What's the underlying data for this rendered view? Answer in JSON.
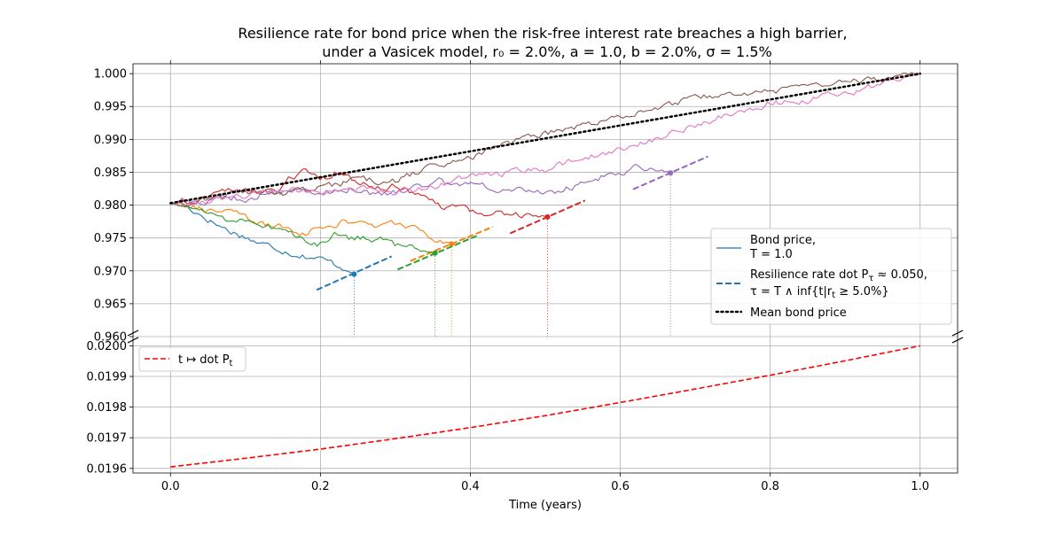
{
  "chart_data": {
    "type": "line",
    "title": "Resilience rate for bond price when the risk-free interest rate breaches a high barrier,",
    "subtitle": "under a Vasicek model, r₀ = 2.0%, a = 1.0, b = 2.0%, σ = 1.5%",
    "xlabel": "Time (years)",
    "xlim": [
      -0.05,
      1.05
    ],
    "x_ticks": [
      "0.0",
      "0.2",
      "0.4",
      "0.6",
      "0.8",
      "1.0"
    ],
    "top_panel": {
      "ylim": [
        0.96,
        1.0015
      ],
      "y_ticks": [
        "0.960",
        "0.965",
        "0.970",
        "0.975",
        "0.980",
        "0.985",
        "0.990",
        "0.995",
        "1.000"
      ],
      "legend": {
        "position": "lower-right",
        "entries": [
          {
            "label_line1": "Bond price,",
            "label_line2": "T = 1.0"
          },
          {
            "label_line1": "Resilience rate dot P",
            "label_sub": "τ",
            "label_tail": " ≈ 0.050,",
            "label_line2": "τ = T ∧ inf{t|r",
            "label_line2_sub": "t",
            "label_line2_tail": " ≥ 5.0%}"
          },
          {
            "label_line1": "Mean bond price"
          }
        ]
      },
      "mean_bond_price": {
        "x": [
          0.0,
          1.0
        ],
        "y": [
          0.9803,
          1.0
        ]
      },
      "series": [
        {
          "name": "path-blue",
          "color": "#1f77b4",
          "knots": [
            [
              0.0,
              0.9802
            ],
            [
              0.02,
              0.9798
            ],
            [
              0.04,
              0.9786
            ],
            [
              0.06,
              0.9772
            ],
            [
              0.08,
              0.976
            ],
            [
              0.1,
              0.9752
            ],
            [
              0.12,
              0.9741
            ],
            [
              0.14,
              0.9736
            ],
            [
              0.16,
              0.9728
            ],
            [
              0.18,
              0.9723
            ],
            [
              0.2,
              0.9718
            ],
            [
              0.22,
              0.971
            ],
            [
              0.24,
              0.97
            ],
            [
              0.245,
              0.9695
            ]
          ],
          "stop": {
            "t": 0.245,
            "p": 0.9695
          },
          "tangent": {
            "x0": 0.195,
            "y0": 0.9671,
            "x1": 0.295,
            "y1": 0.9722
          }
        },
        {
          "name": "path-orange",
          "color": "#ff7f0e",
          "knots": [
            [
              0.0,
              0.9802
            ],
            [
              0.02,
              0.9805
            ],
            [
              0.04,
              0.9795
            ],
            [
              0.06,
              0.979
            ],
            [
              0.08,
              0.9788
            ],
            [
              0.1,
              0.9783
            ],
            [
              0.12,
              0.977
            ],
            [
              0.14,
              0.9768
            ],
            [
              0.16,
              0.9762
            ],
            [
              0.18,
              0.9756
            ],
            [
              0.2,
              0.9768
            ],
            [
              0.22,
              0.9772
            ],
            [
              0.24,
              0.9775
            ],
            [
              0.26,
              0.977
            ],
            [
              0.28,
              0.9768
            ],
            [
              0.3,
              0.9772
            ],
            [
              0.32,
              0.977
            ],
            [
              0.34,
              0.9752
            ],
            [
              0.36,
              0.9745
            ],
            [
              0.375,
              0.9741
            ]
          ],
          "stop": {
            "t": 0.375,
            "p": 0.9741
          },
          "tangent": {
            "x0": 0.32,
            "y0": 0.9715,
            "x1": 0.43,
            "y1": 0.9767
          }
        },
        {
          "name": "path-green",
          "color": "#2ca02c",
          "knots": [
            [
              0.0,
              0.9802
            ],
            [
              0.02,
              0.98
            ],
            [
              0.04,
              0.9793
            ],
            [
              0.06,
              0.9785
            ],
            [
              0.08,
              0.9777
            ],
            [
              0.1,
              0.9778
            ],
            [
              0.12,
              0.9772
            ],
            [
              0.14,
              0.9765
            ],
            [
              0.16,
              0.976
            ],
            [
              0.18,
              0.9742
            ],
            [
              0.2,
              0.974
            ],
            [
              0.22,
              0.9755
            ],
            [
              0.24,
              0.975
            ],
            [
              0.26,
              0.9752
            ],
            [
              0.28,
              0.9748
            ],
            [
              0.3,
              0.9738
            ],
            [
              0.32,
              0.9735
            ],
            [
              0.34,
              0.9733
            ],
            [
              0.353,
              0.9727
            ]
          ],
          "stop": {
            "t": 0.353,
            "p": 0.9727
          },
          "tangent": {
            "x0": 0.303,
            "y0": 0.9702,
            "x1": 0.41,
            "y1": 0.9754
          }
        },
        {
          "name": "path-red",
          "color": "#d62728",
          "knots": [
            [
              0.0,
              0.9802
            ],
            [
              0.02,
              0.9806
            ],
            [
              0.04,
              0.9812
            ],
            [
              0.06,
              0.982
            ],
            [
              0.08,
              0.9823
            ],
            [
              0.1,
              0.9825
            ],
            [
              0.12,
              0.9822
            ],
            [
              0.14,
              0.9816
            ],
            [
              0.16,
              0.9843
            ],
            [
              0.18,
              0.9852
            ],
            [
              0.2,
              0.9835
            ],
            [
              0.22,
              0.985
            ],
            [
              0.24,
              0.9838
            ],
            [
              0.26,
              0.9833
            ],
            [
              0.28,
              0.9828
            ],
            [
              0.3,
              0.983
            ],
            [
              0.32,
              0.9817
            ],
            [
              0.34,
              0.9808
            ],
            [
              0.36,
              0.9798
            ],
            [
              0.38,
              0.9797
            ],
            [
              0.4,
              0.979
            ],
            [
              0.42,
              0.9785
            ],
            [
              0.44,
              0.9788
            ],
            [
              0.46,
              0.9787
            ],
            [
              0.48,
              0.9785
            ],
            [
              0.503,
              0.9782
            ]
          ],
          "stop": {
            "t": 0.503,
            "p": 0.9782
          },
          "tangent": {
            "x0": 0.453,
            "y0": 0.9757,
            "x1": 0.553,
            "y1": 0.9807
          }
        },
        {
          "name": "path-purple",
          "color": "#9467bd",
          "knots": [
            [
              0.0,
              0.9802
            ],
            [
              0.02,
              0.9808
            ],
            [
              0.04,
              0.9803
            ],
            [
              0.06,
              0.981
            ],
            [
              0.08,
              0.9812
            ],
            [
              0.1,
              0.9808
            ],
            [
              0.12,
              0.9815
            ],
            [
              0.14,
              0.9818
            ],
            [
              0.16,
              0.9822
            ],
            [
              0.18,
              0.9818
            ],
            [
              0.2,
              0.9822
            ],
            [
              0.22,
              0.982
            ],
            [
              0.24,
              0.9825
            ],
            [
              0.26,
              0.982
            ],
            [
              0.28,
              0.9815
            ],
            [
              0.3,
              0.9818
            ],
            [
              0.32,
              0.9825
            ],
            [
              0.34,
              0.983
            ],
            [
              0.36,
              0.9835
            ],
            [
              0.38,
              0.9828
            ],
            [
              0.4,
              0.9833
            ],
            [
              0.42,
              0.9829
            ],
            [
              0.44,
              0.9823
            ],
            [
              0.46,
              0.9825
            ],
            [
              0.48,
              0.982
            ],
            [
              0.5,
              0.9818
            ],
            [
              0.52,
              0.9822
            ],
            [
              0.54,
              0.983
            ],
            [
              0.56,
              0.9838
            ],
            [
              0.58,
              0.9845
            ],
            [
              0.6,
              0.985
            ],
            [
              0.62,
              0.9857
            ],
            [
              0.64,
              0.9855
            ],
            [
              0.66,
              0.9852
            ],
            [
              0.667,
              0.9849
            ]
          ],
          "stop": {
            "t": 0.667,
            "p": 0.9849
          },
          "tangent": {
            "x0": 0.617,
            "y0": 0.9824,
            "x1": 0.717,
            "y1": 0.9874
          }
        },
        {
          "name": "path-brown",
          "color": "#8c564b",
          "knots": [
            [
              0.0,
              0.9802
            ],
            [
              0.05,
              0.981
            ],
            [
              0.1,
              0.982
            ],
            [
              0.15,
              0.9818
            ],
            [
              0.2,
              0.9825
            ],
            [
              0.25,
              0.984
            ],
            [
              0.3,
              0.9835
            ],
            [
              0.35,
              0.986
            ],
            [
              0.4,
              0.9872
            ],
            [
              0.45,
              0.9895
            ],
            [
              0.5,
              0.9908
            ],
            [
              0.55,
              0.992
            ],
            [
              0.6,
              0.9935
            ],
            [
              0.65,
              0.995
            ],
            [
              0.7,
              0.9962
            ],
            [
              0.75,
              0.9968
            ],
            [
              0.8,
              0.9972
            ],
            [
              0.85,
              0.9978
            ],
            [
              0.9,
              0.9985
            ],
            [
              0.95,
              0.9992
            ],
            [
              1.0,
              1.0
            ]
          ]
        },
        {
          "name": "path-pink",
          "color": "#e377c2",
          "knots": [
            [
              0.0,
              0.9802
            ],
            [
              0.05,
              0.9808
            ],
            [
              0.1,
              0.9815
            ],
            [
              0.15,
              0.9825
            ],
            [
              0.2,
              0.9818
            ],
            [
              0.25,
              0.9825
            ],
            [
              0.3,
              0.982
            ],
            [
              0.35,
              0.9828
            ],
            [
              0.4,
              0.9845
            ],
            [
              0.45,
              0.985
            ],
            [
              0.5,
              0.9855
            ],
            [
              0.55,
              0.987
            ],
            [
              0.6,
              0.9885
            ],
            [
              0.65,
              0.99
            ],
            [
              0.7,
              0.992
            ],
            [
              0.75,
              0.994
            ],
            [
              0.8,
              0.9955
            ],
            [
              0.85,
              0.996
            ],
            [
              0.9,
              0.997
            ],
            [
              0.95,
              0.9985
            ],
            [
              1.0,
              1.0
            ]
          ]
        }
      ]
    },
    "bottom_panel": {
      "ylim": [
        0.019585,
        0.02003
      ],
      "y_ticks": [
        "0.0196",
        "0.0197",
        "0.0198",
        "0.0199",
        "0.0200"
      ],
      "legend": {
        "position": "upper-left",
        "label_pre": "t ↦ dot P",
        "label_sub": "t"
      },
      "series": [
        {
          "name": "dot-P-curve",
          "color": "#ff0000",
          "style": "dashed",
          "x": [
            0.0,
            0.1,
            0.2,
            0.3,
            0.4,
            0.5,
            0.6,
            0.7,
            0.8,
            0.9,
            1.0
          ],
          "y": [
            0.019605,
            0.019633,
            0.019663,
            0.019697,
            0.019733,
            0.019772,
            0.019815,
            0.019859,
            0.019904,
            0.019951,
            0.02
          ]
        }
      ]
    }
  }
}
